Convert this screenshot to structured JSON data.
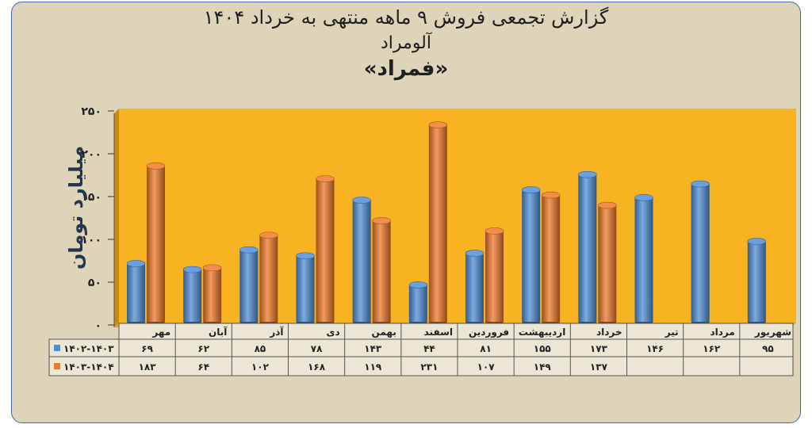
{
  "chart_data": {
    "type": "bar",
    "title": "گزارش تجمعی فروش ۹ ماهه منتهی به خرداد ۱۴۰۴",
    "subtitle": "آلومراد",
    "subtitle2": "«فمراد»",
    "ylabel": "میلیارد تومان",
    "ylim": [
      0,
      250
    ],
    "yticks": [
      0,
      50,
      100,
      150,
      200,
      250
    ],
    "ytick_labels": [
      "۰",
      "۵۰",
      "۱۰۰",
      "۱۵۰",
      "۲۰۰",
      "۲۵۰"
    ],
    "grid": false,
    "legend": "table-left",
    "categories": [
      "مهر",
      "آبان",
      "آذر",
      "دی",
      "بهمن",
      "اسفند",
      "فروردین",
      "اردیبهشت",
      "خرداد",
      "تیر",
      "مرداد",
      "شهریور"
    ],
    "series": [
      {
        "name": "۱۴۰۲-۱۴۰۳",
        "color": "#4f8fd8",
        "values": [
          69,
          62,
          85,
          78,
          143,
          44,
          81,
          155,
          173,
          146,
          162,
          95
        ],
        "labels": [
          "۶۹",
          "۶۲",
          "۸۵",
          "۷۸",
          "۱۴۳",
          "۴۴",
          "۸۱",
          "۱۵۵",
          "۱۷۳",
          "۱۴۶",
          "۱۶۲",
          "۹۵"
        ]
      },
      {
        "name": "۱۴۰۳-۱۴۰۴",
        "color": "#f07a2a",
        "values": [
          183,
          64,
          102,
          168,
          119,
          231,
          107,
          149,
          137,
          null,
          null,
          null
        ],
        "labels": [
          "۱۸۳",
          "۶۴",
          "۱۰۲",
          "۱۶۸",
          "۱۱۹",
          "۲۳۱",
          "۱۰۷",
          "۱۴۹",
          "۱۳۷",
          "",
          "",
          ""
        ]
      }
    ],
    "colors": {
      "plot_background": "#f8b322",
      "wall_shadow": "#c98a12",
      "frame_background": "#ddd4ba",
      "frame_border": "#3e6aa8"
    }
  }
}
